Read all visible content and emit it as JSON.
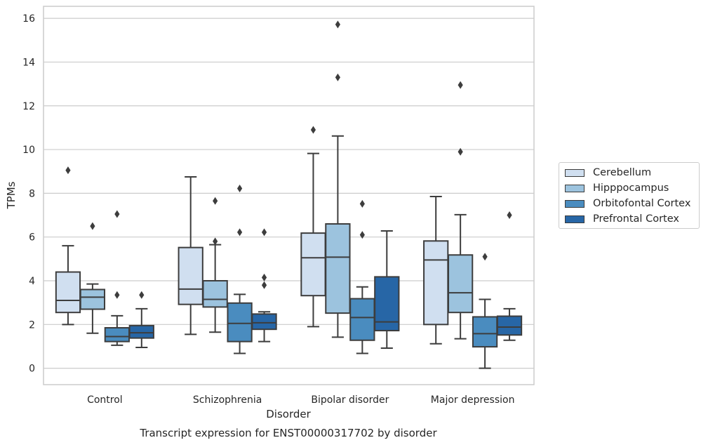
{
  "chart_data": {
    "type": "box",
    "title": "Transcript expression for ENST00000317702 by disorder",
    "xlabel": "Disorder",
    "ylabel": "TPMs",
    "ylim": [
      -0.75,
      16.55
    ],
    "yticks": [
      0,
      2,
      4,
      6,
      8,
      10,
      12,
      14,
      16
    ],
    "grid": true,
    "legend_position": "right",
    "categories": [
      "Control",
      "Schizophrenia",
      "Bipolar disorder",
      "Major depression"
    ],
    "series": [
      {
        "name": "Cerebellum",
        "color": "#d0dff0",
        "boxes": [
          {
            "whisker_low": 2.0,
            "q1": 2.55,
            "median": 3.1,
            "q3": 4.4,
            "whisker_high": 5.6,
            "outliers": [
              9.05
            ]
          },
          {
            "whisker_low": 1.55,
            "q1": 2.92,
            "median": 3.62,
            "q3": 5.52,
            "whisker_high": 8.75,
            "outliers": []
          },
          {
            "whisker_low": 1.9,
            "q1": 3.32,
            "median": 5.05,
            "q3": 6.18,
            "whisker_high": 9.82,
            "outliers": [
              10.9
            ]
          },
          {
            "whisker_low": 1.12,
            "q1": 2.0,
            "median": 4.95,
            "q3": 5.82,
            "whisker_high": 7.85,
            "outliers": []
          }
        ]
      },
      {
        "name": "Hipppocampus",
        "color": "#9cc3de",
        "boxes": [
          {
            "whisker_low": 1.6,
            "q1": 2.7,
            "median": 3.25,
            "q3": 3.6,
            "whisker_high": 3.85,
            "outliers": [
              6.5
            ]
          },
          {
            "whisker_low": 1.65,
            "q1": 2.8,
            "median": 3.15,
            "q3": 4.0,
            "whisker_high": 5.65,
            "outliers": [
              5.8,
              7.65
            ]
          },
          {
            "whisker_low": 1.42,
            "q1": 2.52,
            "median": 5.08,
            "q3": 6.6,
            "whisker_high": 10.62,
            "outliers": [
              13.3,
              15.72
            ]
          },
          {
            "whisker_low": 1.35,
            "q1": 2.55,
            "median": 3.45,
            "q3": 5.18,
            "whisker_high": 7.02,
            "outliers": [
              9.9,
              12.95
            ]
          }
        ]
      },
      {
        "name": "Orbitofontal Cortex",
        "color": "#4a8cbf",
        "boxes": [
          {
            "whisker_low": 1.05,
            "q1": 1.22,
            "median": 1.45,
            "q3": 1.85,
            "whisker_high": 2.4,
            "outliers": [
              3.35,
              7.05
            ]
          },
          {
            "whisker_low": 0.68,
            "q1": 1.22,
            "median": 2.05,
            "q3": 2.98,
            "whisker_high": 3.38,
            "outliers": [
              6.22,
              8.22
            ]
          },
          {
            "whisker_low": 0.68,
            "q1": 1.28,
            "median": 2.32,
            "q3": 3.18,
            "whisker_high": 3.72,
            "outliers": [
              6.1,
              7.52
            ]
          },
          {
            "whisker_low": 0.0,
            "q1": 0.98,
            "median": 1.58,
            "q3": 2.35,
            "whisker_high": 3.15,
            "outliers": [
              5.1
            ]
          }
        ]
      },
      {
        "name": "Prefrontal Cortex",
        "color": "#2766a6",
        "boxes": [
          {
            "whisker_low": 0.95,
            "q1": 1.38,
            "median": 1.62,
            "q3": 1.95,
            "whisker_high": 2.72,
            "outliers": [
              3.35
            ]
          },
          {
            "whisker_low": 1.22,
            "q1": 1.78,
            "median": 2.08,
            "q3": 2.48,
            "whisker_high": 2.58,
            "outliers": [
              3.8,
              4.15,
              6.22
            ]
          },
          {
            "whisker_low": 0.92,
            "q1": 1.72,
            "median": 2.12,
            "q3": 4.18,
            "whisker_high": 6.28,
            "outliers": []
          },
          {
            "whisker_low": 1.28,
            "q1": 1.52,
            "median": 1.88,
            "q3": 2.38,
            "whisker_high": 2.72,
            "outliers": [
              7.0
            ]
          }
        ]
      }
    ]
  }
}
